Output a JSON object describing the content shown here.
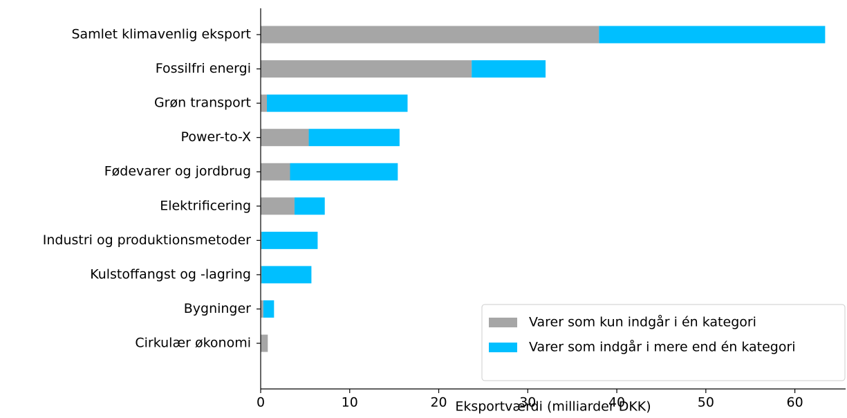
{
  "chart_data": {
    "type": "stacked_barh",
    "xlabel": "Eksportværdi (milliarder DKK)",
    "categories": [
      "Samlet klimavenlig eksport",
      "Fossilfri energi",
      "Grøn transport",
      "Power-to-X",
      "Fødevarer og jordbrug",
      "Elektrificering",
      "Industri og produktionsmetoder",
      "Kulstoffangst og -lagring",
      "Bygninger",
      "Cirkulær økonomi"
    ],
    "series": [
      {
        "name": "Varer som kun indgår i én kategori",
        "color": "#a6a6a6",
        "values": [
          38.0,
          23.7,
          0.7,
          5.4,
          3.3,
          3.8,
          0.1,
          0.1,
          0.3,
          0.8
        ]
      },
      {
        "name": "Varer som indgår i mere end én kategori",
        "color": "#00bfff",
        "values": [
          25.4,
          8.3,
          15.8,
          10.2,
          12.1,
          3.4,
          6.3,
          5.6,
          1.2,
          0
        ]
      }
    ],
    "xlim": [
      0,
      65.7
    ],
    "xticks": [
      0,
      10,
      20,
      30,
      40,
      50,
      60
    ],
    "legend": "lower right"
  }
}
